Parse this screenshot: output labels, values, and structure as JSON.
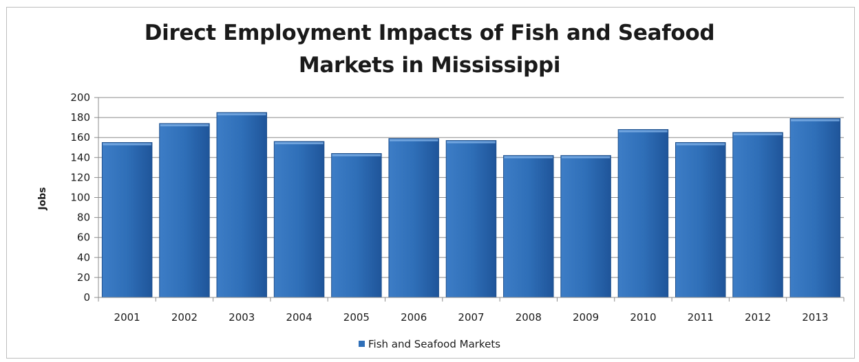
{
  "chart_data": {
    "type": "bar",
    "title_line1": "Direct Employment Impacts of Fish and Seafood",
    "title_line2": "Markets in Mississippi",
    "ylabel": "Jobs",
    "xlabel": "",
    "ylim": [
      0,
      200
    ],
    "yticks": [
      0,
      20,
      40,
      60,
      80,
      100,
      120,
      140,
      160,
      180,
      200
    ],
    "grid": true,
    "legend_position": "bottom",
    "categories": [
      "2001",
      "2002",
      "2003",
      "2004",
      "2005",
      "2006",
      "2007",
      "2008",
      "2009",
      "2010",
      "2011",
      "2012",
      "2013"
    ],
    "series": [
      {
        "name": "Fish and Seafood Markets",
        "color": "#2f6fb8",
        "values": [
          155,
          174,
          185,
          156,
          144,
          159,
          157,
          142,
          142,
          168,
          155,
          165,
          179
        ]
      }
    ]
  }
}
